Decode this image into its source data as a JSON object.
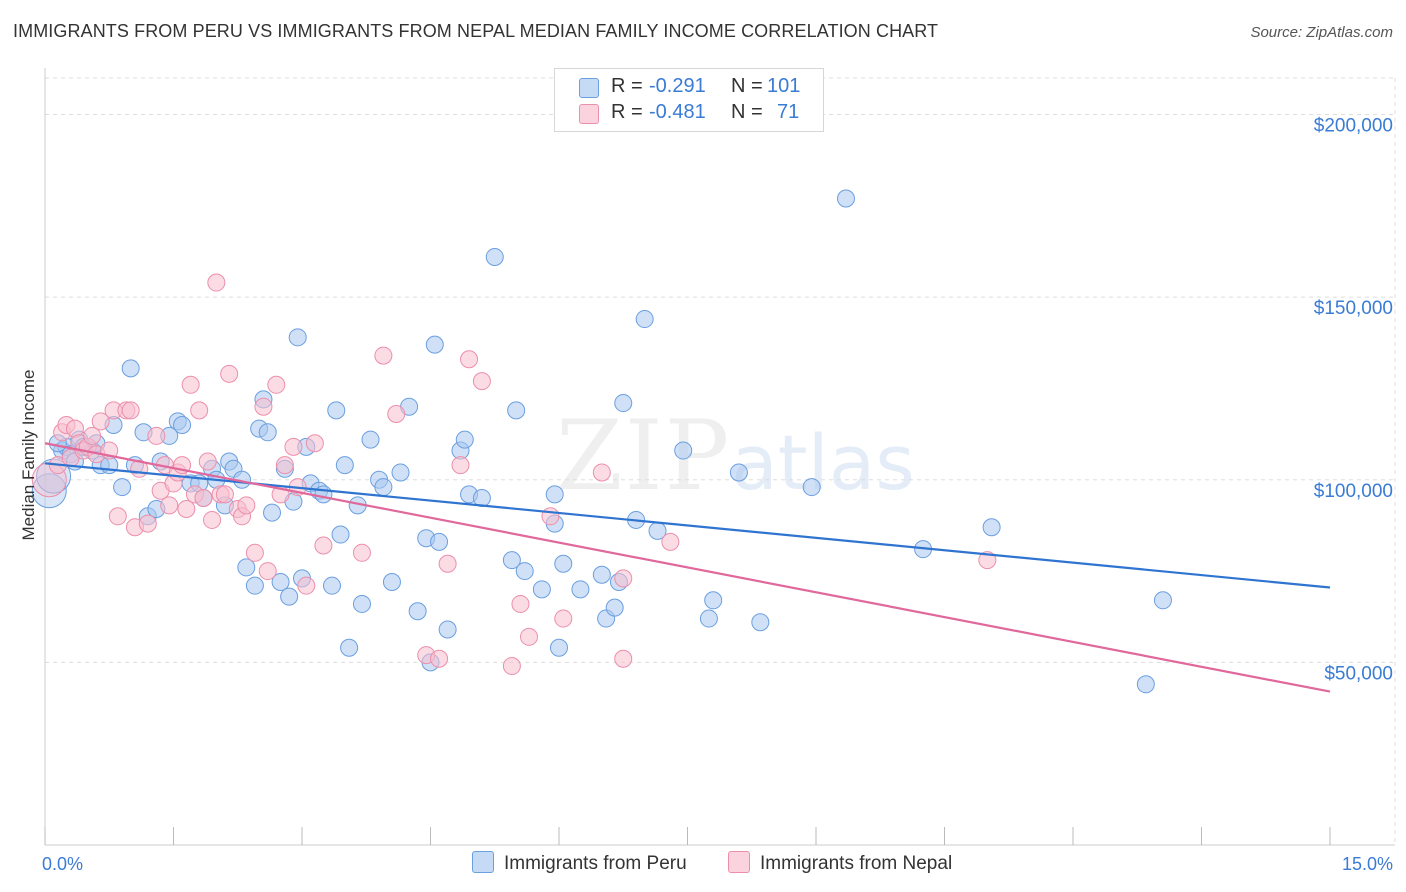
{
  "header": {
    "title": "IMMIGRANTS FROM PERU VS IMMIGRANTS FROM NEPAL MEDIAN FAMILY INCOME CORRELATION CHART",
    "source": "Source: ZipAtlas.com"
  },
  "watermark": {
    "zip": "ZIP",
    "atlas": "atlas"
  },
  "legend_top": {
    "rows": [
      {
        "r_label": "R =",
        "r_value": "-0.291",
        "n_label": "N =",
        "n_value": "101"
      },
      {
        "r_label": "R =",
        "r_value": "-0.481",
        "n_label": "N =",
        "n_value": "71"
      }
    ]
  },
  "legend_bottom": {
    "peru": "Immigrants from Peru",
    "nepal": "Immigrants from Nepal"
  },
  "colors": {
    "peru_fill": "#a9c8f0",
    "peru_stroke": "#6a9fe0",
    "peru_line": "#2f74d0",
    "nepal_fill": "#f7c0d0",
    "nepal_stroke": "#ec8fab",
    "nepal_line": "#e0689a",
    "grid": "#dddddd",
    "tick_label": "#3a7bd5"
  },
  "chart_data": {
    "type": "scatter",
    "title": "IMMIGRANTS FROM PERU VS IMMIGRANTS FROM NEPAL MEDIAN FAMILY INCOME CORRELATION CHART",
    "xlabel": "",
    "ylabel": "Median Family Income",
    "xlim": [
      0,
      15
    ],
    "ylim": [
      0,
      210000
    ],
    "x_tick_labels": [
      "0.0%",
      "15.0%"
    ],
    "y_ticks": [
      50000,
      100000,
      150000,
      200000
    ],
    "y_tick_labels": [
      "$50,000",
      "$100,000",
      "$150,000",
      "$200,000"
    ],
    "grid": true,
    "series": [
      {
        "name": "Immigrants from Peru",
        "R": -0.291,
        "N": 101,
        "trend": {
          "x": [
            0,
            15
          ],
          "y": [
            104500,
            70500
          ]
        },
        "points": [
          [
            0.05,
            97000
          ],
          [
            0.1,
            101000
          ],
          [
            0.2,
            108000
          ],
          [
            0.25,
            109000
          ],
          [
            0.3,
            107000
          ],
          [
            0.35,
            105000
          ],
          [
            0.4,
            111000
          ],
          [
            0.45,
            109000
          ],
          [
            0.55,
            108000
          ],
          [
            0.65,
            104000
          ],
          [
            0.75,
            104000
          ],
          [
            0.8,
            115000
          ],
          [
            0.9,
            98000
          ],
          [
            1.0,
            130500
          ],
          [
            1.05,
            104000
          ],
          [
            1.15,
            113000
          ],
          [
            1.2,
            90000
          ],
          [
            1.3,
            92000
          ],
          [
            1.35,
            105000
          ],
          [
            1.45,
            112000
          ],
          [
            1.55,
            116000
          ],
          [
            1.6,
            115000
          ],
          [
            1.7,
            99000
          ],
          [
            1.8,
            99000
          ],
          [
            1.85,
            95000
          ],
          [
            1.95,
            103000
          ],
          [
            2.0,
            100000
          ],
          [
            2.1,
            93000
          ],
          [
            2.15,
            105000
          ],
          [
            2.2,
            103000
          ],
          [
            2.3,
            100000
          ],
          [
            2.35,
            76000
          ],
          [
            2.45,
            71000
          ],
          [
            2.5,
            114000
          ],
          [
            2.55,
            122000
          ],
          [
            2.6,
            113000
          ],
          [
            2.65,
            91000
          ],
          [
            2.75,
            72000
          ],
          [
            2.8,
            103000
          ],
          [
            2.85,
            68000
          ],
          [
            2.9,
            94000
          ],
          [
            2.95,
            139000
          ],
          [
            3.0,
            73000
          ],
          [
            3.05,
            109000
          ],
          [
            3.1,
            99000
          ],
          [
            3.2,
            97000
          ],
          [
            3.25,
            96000
          ],
          [
            3.35,
            71000
          ],
          [
            3.4,
            119000
          ],
          [
            3.45,
            85000
          ],
          [
            3.5,
            104000
          ],
          [
            3.55,
            54000
          ],
          [
            3.65,
            93000
          ],
          [
            3.7,
            66000
          ],
          [
            3.8,
            111000
          ],
          [
            3.9,
            100000
          ],
          [
            3.95,
            98000
          ],
          [
            4.05,
            72000
          ],
          [
            4.15,
            102000
          ],
          [
            4.25,
            120000
          ],
          [
            4.35,
            64000
          ],
          [
            4.45,
            84000
          ],
          [
            4.5,
            50000
          ],
          [
            4.55,
            137000
          ],
          [
            4.6,
            83000
          ],
          [
            4.7,
            59000
          ],
          [
            4.85,
            108000
          ],
          [
            4.9,
            111000
          ],
          [
            4.95,
            96000
          ],
          [
            5.1,
            95000
          ],
          [
            5.25,
            161000
          ],
          [
            5.45,
            78000
          ],
          [
            5.5,
            119000
          ],
          [
            5.6,
            75000
          ],
          [
            5.8,
            70000
          ],
          [
            5.95,
            88000
          ],
          [
            5.95,
            96000
          ],
          [
            6.0,
            54000
          ],
          [
            6.05,
            77000
          ],
          [
            6.25,
            70000
          ],
          [
            6.5,
            74000
          ],
          [
            6.55,
            62000
          ],
          [
            6.65,
            65000
          ],
          [
            6.7,
            72000
          ],
          [
            6.75,
            121000
          ],
          [
            6.9,
            89000
          ],
          [
            7.0,
            144000
          ],
          [
            7.15,
            86000
          ],
          [
            7.45,
            108000
          ],
          [
            7.75,
            62000
          ],
          [
            7.8,
            67000
          ],
          [
            8.1,
            102000
          ],
          [
            8.35,
            61000
          ],
          [
            8.95,
            98000
          ],
          [
            9.35,
            177000
          ],
          [
            10.25,
            81000
          ],
          [
            11.05,
            87000
          ],
          [
            12.85,
            44000
          ],
          [
            13.05,
            67000
          ],
          [
            0.15,
            110000
          ],
          [
            0.6,
            110000
          ]
        ]
      },
      {
        "name": "Immigrants from Nepal",
        "R": -0.481,
        "N": 71,
        "trend": {
          "x": [
            0,
            15
          ],
          "y": [
            110000,
            42000
          ]
        },
        "points": [
          [
            0.05,
            100000
          ],
          [
            0.15,
            104000
          ],
          [
            0.2,
            113000
          ],
          [
            0.25,
            115000
          ],
          [
            0.3,
            106000
          ],
          [
            0.35,
            114000
          ],
          [
            0.4,
            110000
          ],
          [
            0.45,
            108000
          ],
          [
            0.5,
            109000
          ],
          [
            0.55,
            112000
          ],
          [
            0.6,
            107000
          ],
          [
            0.65,
            116000
          ],
          [
            0.75,
            108000
          ],
          [
            0.8,
            119000
          ],
          [
            0.85,
            90000
          ],
          [
            0.95,
            119000
          ],
          [
            1.0,
            119000
          ],
          [
            1.05,
            87000
          ],
          [
            1.1,
            103000
          ],
          [
            1.2,
            88000
          ],
          [
            1.3,
            112000
          ],
          [
            1.35,
            97000
          ],
          [
            1.4,
            104000
          ],
          [
            1.45,
            93000
          ],
          [
            1.5,
            99000
          ],
          [
            1.55,
            102000
          ],
          [
            1.6,
            104000
          ],
          [
            1.65,
            92000
          ],
          [
            1.7,
            126000
          ],
          [
            1.75,
            96000
          ],
          [
            1.8,
            119000
          ],
          [
            1.85,
            95000
          ],
          [
            1.9,
            105000
          ],
          [
            1.95,
            89000
          ],
          [
            2.0,
            154000
          ],
          [
            2.05,
            96000
          ],
          [
            2.1,
            96000
          ],
          [
            2.15,
            129000
          ],
          [
            2.25,
            92000
          ],
          [
            2.3,
            90000
          ],
          [
            2.35,
            93000
          ],
          [
            2.45,
            80000
          ],
          [
            2.55,
            120000
          ],
          [
            2.6,
            75000
          ],
          [
            2.7,
            126000
          ],
          [
            2.75,
            96000
          ],
          [
            2.8,
            104000
          ],
          [
            2.9,
            109000
          ],
          [
            2.95,
            98000
          ],
          [
            3.05,
            71000
          ],
          [
            3.15,
            110000
          ],
          [
            3.25,
            82000
          ],
          [
            3.7,
            80000
          ],
          [
            3.95,
            134000
          ],
          [
            4.1,
            118000
          ],
          [
            4.45,
            52000
          ],
          [
            4.6,
            51000
          ],
          [
            4.7,
            77000
          ],
          [
            4.85,
            104000
          ],
          [
            4.95,
            133000
          ],
          [
            5.1,
            127000
          ],
          [
            5.45,
            49000
          ],
          [
            5.55,
            66000
          ],
          [
            5.65,
            57000
          ],
          [
            5.9,
            90000
          ],
          [
            6.05,
            62000
          ],
          [
            6.5,
            102000
          ],
          [
            6.75,
            73000
          ],
          [
            6.75,
            51000
          ],
          [
            7.3,
            83000
          ],
          [
            11.0,
            78000
          ]
        ]
      }
    ]
  }
}
